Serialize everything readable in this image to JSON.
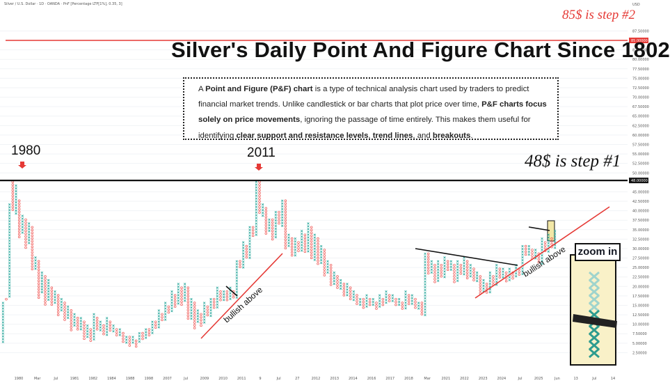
{
  "header": {
    "symbol_line": "Silver / U.S. Dollar · 1D · OANDA · PnF [Percentage LTP[1%], 0.35, 3]",
    "currency": "USD"
  },
  "annotations": {
    "title": "Silver's Daily Point And Figure Chart Since 1802",
    "step2": "85$ is step #2",
    "step1": "48$ is step #1",
    "year_1980": "1980",
    "year_2011": "2011",
    "bullish_above_1": "bullish above",
    "bullish_above_2": "bullish above",
    "zoom_in": "zoom in"
  },
  "description": {
    "t1": "A ",
    "b1": "Point and Figure (P&F) chart",
    "t2": " is a type of technical analysis chart used by traders to predict financial market trends. Unlike candlestick or bar charts that plot price over time, ",
    "b2": "P&F charts focus solely on price movements",
    "t3": ", ignoring the passage of time entirely. This makes them useful for identifying ",
    "b3": "clear support and resistance levels",
    "t4": ", ",
    "b4": "trend lines",
    "t5": ", and ",
    "b5": "breakouts",
    "t6": "."
  },
  "colors": {
    "x_column": "#26a69a",
    "o_column": "#ef5350",
    "resistance_line": "#111111",
    "target_line": "#e53935",
    "trend_line": "#e53935",
    "highlight": "#f2e7a6"
  },
  "chart_data": {
    "type": "point-and-figure",
    "title": "Silver's Daily Point And Figure Chart Since 1802",
    "x_tick_labels": [
      "1980",
      "Mar",
      "Jul",
      "1981",
      "1982",
      "1984",
      "1988",
      "1998",
      "2007",
      "Jul",
      "2009",
      "2010",
      "2011",
      "9",
      "Jul",
      "27",
      "2012",
      "2013",
      "2014",
      "2016",
      "2017",
      "2018",
      "Mar",
      "2021",
      "2022",
      "2023",
      "2024",
      "Jul",
      "2025",
      "Jun",
      "13",
      "Jul",
      "14"
    ],
    "y_tick_labels": [
      "87.50000",
      "82.50000",
      "80.00000",
      "77.50000",
      "75.00000",
      "72.50000",
      "70.00000",
      "67.50000",
      "65.00000",
      "62.50000",
      "60.00000",
      "57.50000",
      "55.00000",
      "52.50000",
      "50.00000",
      "45.00000",
      "42.50000",
      "40.00000",
      "37.50000",
      "35.00000",
      "32.50000",
      "30.00000",
      "27.50000",
      "25.00000",
      "22.50000",
      "20.00000",
      "17.50000",
      "15.00000",
      "12.50000",
      "10.00000",
      "7.50000",
      "5.00000",
      "2.50000"
    ],
    "y_tick_values": [
      87.5,
      82.5,
      80,
      77.5,
      75,
      72.5,
      70,
      67.5,
      65,
      62.5,
      60,
      57.5,
      55,
      52.5,
      50,
      45,
      42.5,
      40,
      37.5,
      35,
      32.5,
      30,
      27.5,
      25,
      22.5,
      20,
      17.5,
      15,
      12.5,
      10,
      7.5,
      5,
      2.5
    ],
    "ylim": [
      0,
      92
    ],
    "scale": "linear",
    "y_markers": [
      {
        "value": 85,
        "label": "85.00000",
        "color": "#e53935"
      },
      {
        "value": 48,
        "label": "48.00000",
        "color": "#111111"
      }
    ],
    "highs": [
      {
        "label": "1980",
        "value": 48
      },
      {
        "label": "2011",
        "value": 48
      }
    ],
    "columns": [
      {
        "type": "X",
        "low": 5,
        "high": 16
      },
      {
        "type": "O",
        "low": 16,
        "high": 17
      },
      {
        "type": "X",
        "low": 17,
        "high": 42
      },
      {
        "type": "O",
        "low": 40,
        "high": 48
      },
      {
        "type": "X",
        "low": 39,
        "high": 47
      },
      {
        "type": "O",
        "low": 33,
        "high": 43
      },
      {
        "type": "X",
        "low": 34,
        "high": 39
      },
      {
        "type": "O",
        "low": 30,
        "high": 38
      },
      {
        "type": "X",
        "low": 31,
        "high": 37
      },
      {
        "type": "O",
        "low": 24,
        "high": 36
      },
      {
        "type": "X",
        "low": 24,
        "high": 28
      },
      {
        "type": "O",
        "low": 17,
        "high": 27
      },
      {
        "type": "X",
        "low": 18,
        "high": 24
      },
      {
        "type": "O",
        "low": 15,
        "high": 23
      },
      {
        "type": "X",
        "low": 16,
        "high": 22
      },
      {
        "type": "O",
        "low": 15,
        "high": 20
      },
      {
        "type": "X",
        "low": 15,
        "high": 19
      },
      {
        "type": "O",
        "low": 12,
        "high": 18
      },
      {
        "type": "X",
        "low": 13,
        "high": 17
      },
      {
        "type": "O",
        "low": 11,
        "high": 16
      },
      {
        "type": "X",
        "low": 11,
        "high": 15
      },
      {
        "type": "O",
        "low": 8,
        "high": 14
      },
      {
        "type": "X",
        "low": 9,
        "high": 13
      },
      {
        "type": "O",
        "low": 8,
        "high": 12
      },
      {
        "type": "X",
        "low": 8,
        "high": 12
      },
      {
        "type": "O",
        "low": 6,
        "high": 11
      },
      {
        "type": "X",
        "low": 6,
        "high": 10
      },
      {
        "type": "O",
        "low": 5,
        "high": 9
      },
      {
        "type": "X",
        "low": 6,
        "high": 13
      },
      {
        "type": "O",
        "low": 8,
        "high": 12
      },
      {
        "type": "X",
        "low": 8,
        "high": 11
      },
      {
        "type": "O",
        "low": 7,
        "high": 10
      },
      {
        "type": "X",
        "low": 7,
        "high": 12
      },
      {
        "type": "O",
        "low": 8,
        "high": 11
      },
      {
        "type": "X",
        "low": 8,
        "high": 10
      },
      {
        "type": "O",
        "low": 7,
        "high": 9
      },
      {
        "type": "X",
        "low": 7,
        "high": 9
      },
      {
        "type": "O",
        "low": 5,
        "high": 8
      },
      {
        "type": "X",
        "low": 5,
        "high": 7
      },
      {
        "type": "O",
        "low": 4,
        "high": 7
      },
      {
        "type": "X",
        "low": 5,
        "high": 7
      },
      {
        "type": "O",
        "low": 4,
        "high": 6
      },
      {
        "type": "X",
        "low": 5,
        "high": 8
      },
      {
        "type": "O",
        "low": 6,
        "high": 8
      },
      {
        "type": "X",
        "low": 6,
        "high": 9
      },
      {
        "type": "O",
        "low": 7,
        "high": 9
      },
      {
        "type": "X",
        "low": 7,
        "high": 11
      },
      {
        "type": "O",
        "low": 9,
        "high": 11
      },
      {
        "type": "X",
        "low": 9,
        "high": 14
      },
      {
        "type": "O",
        "low": 11,
        "high": 13
      },
      {
        "type": "X",
        "low": 11,
        "high": 16
      },
      {
        "type": "O",
        "low": 13,
        "high": 15
      },
      {
        "type": "X",
        "low": 13,
        "high": 19
      },
      {
        "type": "O",
        "low": 14,
        "high": 18
      },
      {
        "type": "X",
        "low": 15,
        "high": 21
      },
      {
        "type": "O",
        "low": 15,
        "high": 20
      },
      {
        "type": "X",
        "low": 16,
        "high": 21
      },
      {
        "type": "O",
        "low": 11,
        "high": 20
      },
      {
        "type": "X",
        "low": 11,
        "high": 17
      },
      {
        "type": "O",
        "low": 9,
        "high": 16
      },
      {
        "type": "X",
        "low": 10,
        "high": 14
      },
      {
        "type": "O",
        "low": 9,
        "high": 13
      },
      {
        "type": "X",
        "low": 10,
        "high": 16
      },
      {
        "type": "O",
        "low": 12,
        "high": 15
      },
      {
        "type": "X",
        "low": 12,
        "high": 17
      },
      {
        "type": "O",
        "low": 14,
        "high": 17
      },
      {
        "type": "X",
        "low": 14,
        "high": 20
      },
      {
        "type": "O",
        "low": 16,
        "high": 19
      },
      {
        "type": "X",
        "low": 16,
        "high": 19
      },
      {
        "type": "O",
        "low": 16,
        "high": 19
      },
      {
        "type": "X",
        "low": 16,
        "high": 20
      },
      {
        "type": "O",
        "low": 17,
        "high": 19
      },
      {
        "type": "X",
        "low": 17,
        "high": 27
      },
      {
        "type": "O",
        "low": 25,
        "high": 27
      },
      {
        "type": "X",
        "low": 25,
        "high": 32
      },
      {
        "type": "O",
        "low": 27,
        "high": 31
      },
      {
        "type": "X",
        "low": 27,
        "high": 36
      },
      {
        "type": "O",
        "low": 33,
        "high": 36
      },
      {
        "type": "X",
        "low": 33,
        "high": 48
      },
      {
        "type": "O",
        "low": 39,
        "high": 48
      },
      {
        "type": "X",
        "low": 38,
        "high": 42
      },
      {
        "type": "O",
        "low": 34,
        "high": 41
      },
      {
        "type": "X",
        "low": 34,
        "high": 38
      },
      {
        "type": "O",
        "low": 32,
        "high": 38
      },
      {
        "type": "X",
        "low": 33,
        "high": 40
      },
      {
        "type": "O",
        "low": 36,
        "high": 40
      },
      {
        "type": "X",
        "low": 36,
        "high": 43
      },
      {
        "type": "O",
        "low": 30,
        "high": 43
      },
      {
        "type": "X",
        "low": 30,
        "high": 34
      },
      {
        "type": "O",
        "low": 28,
        "high": 33
      },
      {
        "type": "X",
        "low": 28,
        "high": 33
      },
      {
        "type": "O",
        "low": 29,
        "high": 32
      },
      {
        "type": "X",
        "low": 29,
        "high": 35
      },
      {
        "type": "O",
        "low": 29,
        "high": 34
      },
      {
        "type": "X",
        "low": 29,
        "high": 37
      },
      {
        "type": "O",
        "low": 27,
        "high": 36
      },
      {
        "type": "X",
        "low": 27,
        "high": 34
      },
      {
        "type": "O",
        "low": 26,
        "high": 33
      },
      {
        "type": "X",
        "low": 26,
        "high": 31
      },
      {
        "type": "O",
        "low": 23,
        "high": 30
      },
      {
        "type": "X",
        "low": 23,
        "high": 27
      },
      {
        "type": "O",
        "low": 20,
        "high": 26
      },
      {
        "type": "X",
        "low": 20,
        "high": 24
      },
      {
        "type": "O",
        "low": 19,
        "high": 23
      },
      {
        "type": "X",
        "low": 19,
        "high": 22
      },
      {
        "type": "O",
        "low": 17,
        "high": 21
      },
      {
        "type": "X",
        "low": 17,
        "high": 21
      },
      {
        "type": "O",
        "low": 16,
        "high": 20
      },
      {
        "type": "X",
        "low": 16,
        "high": 19
      },
      {
        "type": "O",
        "low": 15,
        "high": 18
      },
      {
        "type": "X",
        "low": 15,
        "high": 17
      },
      {
        "type": "O",
        "low": 14,
        "high": 17
      },
      {
        "type": "X",
        "low": 14,
        "high": 18
      },
      {
        "type": "O",
        "low": 15,
        "high": 17
      },
      {
        "type": "X",
        "low": 15,
        "high": 17
      },
      {
        "type": "O",
        "low": 14,
        "high": 16
      },
      {
        "type": "X",
        "low": 14,
        "high": 18
      },
      {
        "type": "O",
        "low": 15,
        "high": 17
      },
      {
        "type": "X",
        "low": 15,
        "high": 19
      },
      {
        "type": "O",
        "low": 16,
        "high": 18
      },
      {
        "type": "X",
        "low": 16,
        "high": 18
      },
      {
        "type": "O",
        "low": 15,
        "high": 17
      },
      {
        "type": "X",
        "low": 15,
        "high": 17
      },
      {
        "type": "O",
        "low": 14,
        "high": 16
      },
      {
        "type": "X",
        "low": 14,
        "high": 19
      },
      {
        "type": "O",
        "low": 15,
        "high": 18
      },
      {
        "type": "X",
        "low": 15,
        "high": 18
      },
      {
        "type": "O",
        "low": 14,
        "high": 17
      },
      {
        "type": "X",
        "low": 14,
        "high": 16
      },
      {
        "type": "O",
        "low": 12,
        "high": 16
      },
      {
        "type": "X",
        "low": 12,
        "high": 29
      },
      {
        "type": "O",
        "low": 23,
        "high": 29
      },
      {
        "type": "X",
        "low": 23,
        "high": 27
      },
      {
        "type": "O",
        "low": 21,
        "high": 26
      },
      {
        "type": "X",
        "low": 21,
        "high": 27
      },
      {
        "type": "O",
        "low": 22,
        "high": 26
      },
      {
        "type": "X",
        "low": 22,
        "high": 28
      },
      {
        "type": "O",
        "low": 24,
        "high": 27
      },
      {
        "type": "X",
        "low": 24,
        "high": 27
      },
      {
        "type": "O",
        "low": 21,
        "high": 26
      },
      {
        "type": "X",
        "low": 21,
        "high": 27
      },
      {
        "type": "O",
        "low": 23,
        "high": 26
      },
      {
        "type": "X",
        "low": 23,
        "high": 28
      },
      {
        "type": "O",
        "low": 22,
        "high": 27
      },
      {
        "type": "X",
        "low": 22,
        "high": 26
      },
      {
        "type": "O",
        "low": 21,
        "high": 25
      },
      {
        "type": "X",
        "low": 21,
        "high": 24
      },
      {
        "type": "O",
        "low": 18,
        "high": 23
      },
      {
        "type": "X",
        "low": 18,
        "high": 22
      },
      {
        "type": "O",
        "low": 18,
        "high": 21
      },
      {
        "type": "X",
        "low": 18,
        "high": 24
      },
      {
        "type": "O",
        "low": 20,
        "high": 23
      },
      {
        "type": "X",
        "low": 20,
        "high": 26
      },
      {
        "type": "O",
        "low": 22,
        "high": 25
      },
      {
        "type": "X",
        "low": 22,
        "high": 25
      },
      {
        "type": "O",
        "low": 21,
        "high": 24
      },
      {
        "type": "X",
        "low": 21,
        "high": 25
      },
      {
        "type": "O",
        "low": 22,
        "high": 24
      },
      {
        "type": "X",
        "low": 22,
        "high": 26
      },
      {
        "type": "O",
        "low": 23,
        "high": 25
      },
      {
        "type": "X",
        "low": 23,
        "high": 31
      },
      {
        "type": "O",
        "low": 28,
        "high": 31
      },
      {
        "type": "X",
        "low": 28,
        "high": 31
      },
      {
        "type": "O",
        "low": 27,
        "high": 30
      },
      {
        "type": "X",
        "low": 27,
        "high": 30
      },
      {
        "type": "O",
        "low": 26,
        "high": 29
      },
      {
        "type": "X",
        "low": 26,
        "high": 33
      },
      {
        "type": "O",
        "low": 29,
        "high": 32
      },
      {
        "type": "X",
        "low": 29,
        "high": 34
      },
      {
        "type": "O",
        "low": 30,
        "high": 33
      },
      {
        "type": "X",
        "low": 30,
        "high": 35
      }
    ]
  }
}
